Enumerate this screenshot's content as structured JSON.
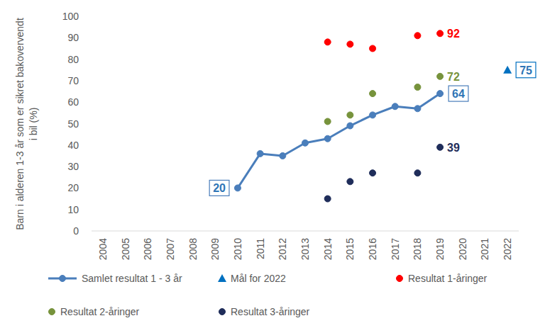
{
  "chart_data": {
    "type": "line",
    "y_label": "Barn i alderen 1-3 år som er sikret bakovervendt i bil (%)",
    "categories": [
      "2004",
      "2005",
      "2006",
      "2007",
      "2008",
      "2009",
      "2010",
      "2011",
      "2012",
      "2013",
      "2014",
      "2015",
      "2016",
      "2017",
      "2018",
      "2019",
      "2020",
      "2021",
      "2022"
    ],
    "ylim": [
      0,
      100
    ],
    "yticks": [
      0,
      10,
      20,
      30,
      40,
      50,
      60,
      70,
      80,
      90,
      100
    ],
    "grid": false,
    "legend": "bottom",
    "series": [
      {
        "name": "Samlet resultat 1 - 3 år",
        "type": "line",
        "marker": "circle",
        "color": "#4a7ebb",
        "values": [
          null,
          null,
          null,
          null,
          null,
          null,
          20,
          36,
          35,
          41,
          43,
          49,
          54,
          58,
          57,
          64,
          null,
          null,
          null
        ],
        "value_labels": [
          null,
          null,
          null,
          null,
          null,
          null,
          "20",
          null,
          null,
          null,
          null,
          null,
          null,
          null,
          null,
          "64",
          null,
          null,
          null
        ]
      },
      {
        "name": "Mål for 2022",
        "type": "scatter",
        "marker": "triangle",
        "color": "#0070c0",
        "values": [
          null,
          null,
          null,
          null,
          null,
          null,
          null,
          null,
          null,
          null,
          null,
          null,
          null,
          null,
          null,
          null,
          null,
          null,
          75
        ],
        "value_labels": [
          null,
          null,
          null,
          null,
          null,
          null,
          null,
          null,
          null,
          null,
          null,
          null,
          null,
          null,
          null,
          null,
          null,
          null,
          "75"
        ]
      },
      {
        "name": "Resultat 1-åringer",
        "type": "scatter",
        "marker": "circle",
        "color": "#ff0000",
        "values": [
          null,
          null,
          null,
          null,
          null,
          null,
          null,
          null,
          null,
          null,
          88,
          87,
          85,
          null,
          91,
          92,
          null,
          null,
          null
        ],
        "value_labels": [
          null,
          null,
          null,
          null,
          null,
          null,
          null,
          null,
          null,
          null,
          null,
          null,
          null,
          null,
          null,
          "92",
          null,
          null,
          null
        ]
      },
      {
        "name": "Resultat 2-åringer",
        "type": "scatter",
        "marker": "circle",
        "color": "#77933c",
        "values": [
          null,
          null,
          null,
          null,
          null,
          null,
          null,
          null,
          null,
          null,
          51,
          54,
          64,
          null,
          67,
          72,
          null,
          null,
          null
        ],
        "value_labels": [
          null,
          null,
          null,
          null,
          null,
          null,
          null,
          null,
          null,
          null,
          null,
          null,
          null,
          null,
          null,
          "72",
          null,
          null,
          null
        ]
      },
      {
        "name": "Resultat 3-åringer",
        "type": "scatter",
        "marker": "circle",
        "color": "#1f2d5a",
        "values": [
          null,
          null,
          null,
          null,
          null,
          null,
          null,
          null,
          null,
          null,
          15,
          23,
          27,
          null,
          27,
          39,
          null,
          null,
          null
        ],
        "value_labels": [
          null,
          null,
          null,
          null,
          null,
          null,
          null,
          null,
          null,
          null,
          null,
          null,
          null,
          null,
          null,
          "39",
          null,
          null,
          null
        ]
      }
    ]
  }
}
